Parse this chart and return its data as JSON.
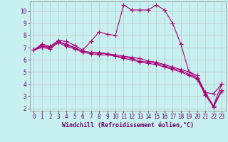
{
  "xlabel": "Windchill (Refroidissement éolien,°C)",
  "background_color": "#c8f0f0",
  "line_color": "#aa0077",
  "grid_color": "#bbbbbb",
  "xlim": [
    -0.5,
    23.5
  ],
  "ylim": [
    1.8,
    10.8
  ],
  "xticks": [
    0,
    1,
    2,
    3,
    4,
    5,
    6,
    7,
    8,
    9,
    10,
    11,
    12,
    13,
    14,
    15,
    16,
    17,
    18,
    19,
    20,
    21,
    22,
    23
  ],
  "yticks": [
    2,
    3,
    4,
    5,
    6,
    7,
    8,
    9,
    10
  ],
  "series": [
    {
      "x": [
        0,
        1,
        2,
        3,
        4,
        5,
        6,
        7,
        8,
        9,
        10,
        11,
        12,
        13,
        14,
        15,
        16,
        17,
        18,
        19,
        20,
        21,
        22,
        23
      ],
      "y": [
        6.8,
        7.3,
        7.1,
        7.6,
        7.5,
        7.2,
        6.8,
        7.5,
        8.3,
        8.1,
        8.0,
        10.5,
        10.1,
        10.1,
        10.1,
        10.5,
        10.1,
        9.0,
        7.3,
        5.0,
        4.5,
        3.3,
        2.2,
        4.0
      ]
    },
    {
      "x": [
        0,
        1,
        2,
        3,
        4,
        5,
        6,
        7,
        8,
        9,
        10,
        11,
        12,
        13,
        14,
        15,
        16,
        17,
        18,
        19,
        20,
        21,
        22,
        23
      ],
      "y": [
        6.8,
        7.1,
        7.0,
        7.5,
        7.2,
        7.0,
        6.7,
        6.6,
        6.6,
        6.5,
        6.4,
        6.3,
        6.2,
        6.1,
        5.9,
        5.8,
        5.6,
        5.4,
        5.2,
        5.0,
        4.7,
        3.3,
        3.2,
        4.0
      ]
    },
    {
      "x": [
        0,
        1,
        2,
        3,
        4,
        5,
        6,
        7,
        8,
        9,
        10,
        11,
        12,
        13,
        14,
        15,
        16,
        17,
        18,
        19,
        20,
        21,
        22,
        23
      ],
      "y": [
        6.8,
        7.2,
        7.0,
        7.5,
        7.3,
        7.0,
        6.7,
        6.6,
        6.5,
        6.5,
        6.3,
        6.2,
        6.1,
        5.9,
        5.8,
        5.7,
        5.5,
        5.3,
        5.1,
        4.8,
        4.5,
        3.2,
        2.2,
        3.5
      ]
    },
    {
      "x": [
        0,
        1,
        2,
        3,
        4,
        5,
        6,
        7,
        8,
        9,
        10,
        11,
        12,
        13,
        14,
        15,
        16,
        17,
        18,
        19,
        20,
        21,
        22,
        23
      ],
      "y": [
        6.8,
        7.0,
        6.9,
        7.4,
        7.1,
        6.9,
        6.6,
        6.5,
        6.4,
        6.4,
        6.3,
        6.1,
        6.0,
        5.8,
        5.7,
        5.6,
        5.4,
        5.2,
        5.0,
        4.7,
        4.4,
        3.1,
        2.1,
        3.4
      ]
    }
  ],
  "marker_size": 4,
  "line_width": 0.8,
  "tick_fontsize": 5.5,
  "label_fontsize": 6.0
}
